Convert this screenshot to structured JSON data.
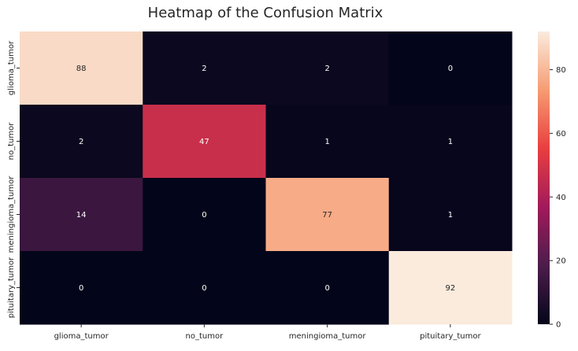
{
  "chart_data": {
    "type": "heatmap",
    "title": "Heatmap of the Confusion Matrix",
    "xlabel": "",
    "ylabel": "",
    "x_categories": [
      "glioma_tumor",
      "no_tumor",
      "meningioma_tumor",
      "pituitary_tumor"
    ],
    "y_categories": [
      "glioma_tumor",
      "no_tumor",
      "meningioma_tumor",
      "pituitary_tumor"
    ],
    "values": [
      [
        88,
        2,
        2,
        0
      ],
      [
        2,
        47,
        1,
        1
      ],
      [
        14,
        0,
        77,
        1
      ],
      [
        0,
        0,
        0,
        92
      ]
    ],
    "colorbar": {
      "min": 0,
      "max": 92,
      "ticks": [
        0,
        20,
        40,
        60,
        80
      ],
      "tick_labels": [
        "0",
        "20",
        "40",
        "60",
        "80"
      ],
      "colormap": "rocket",
      "stops": [
        "#03051a",
        "#4c1d4b",
        "#a11a5b",
        "#e83f3f",
        "#f69c73",
        "#faebdd"
      ]
    },
    "grid": false,
    "legend": "colorbar-right"
  }
}
